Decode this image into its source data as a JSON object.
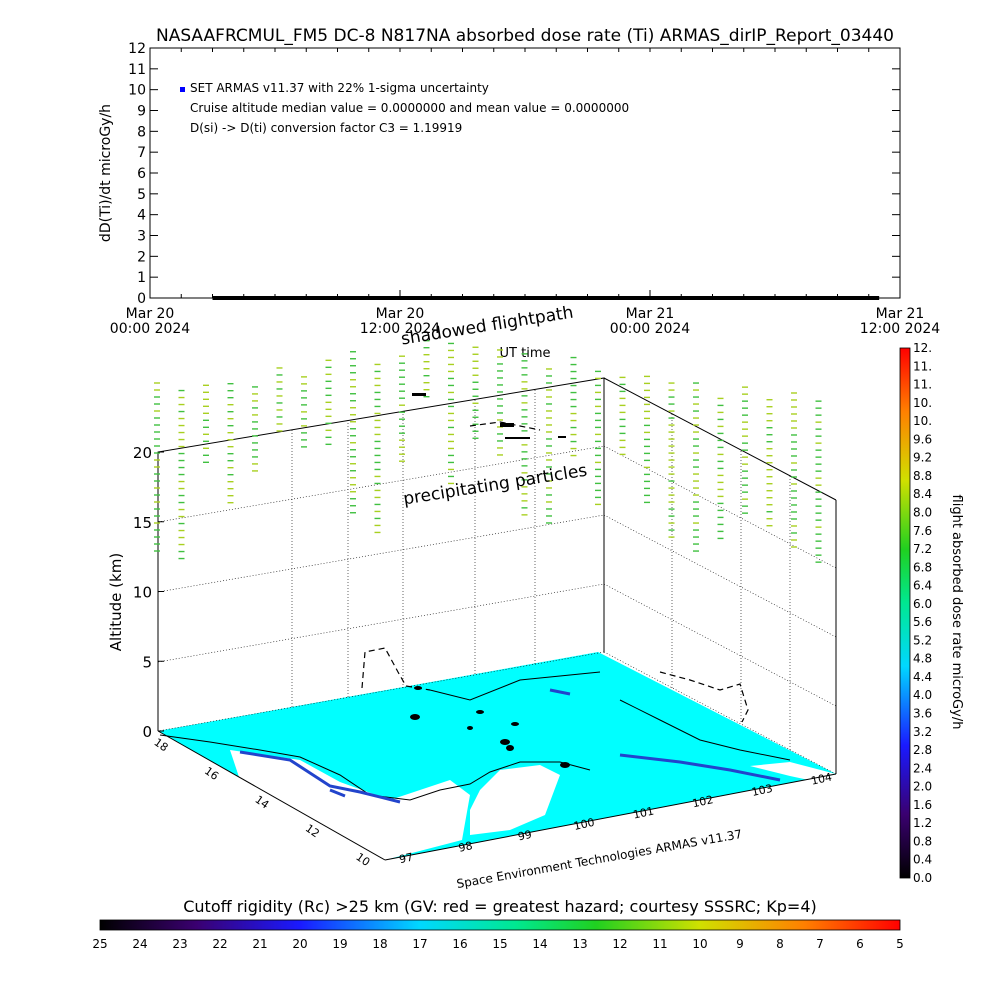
{
  "title": "NASAAFRCMUL_FM5 DC-8   N817NA absorbed dose rate (Ti) ARMAS_dirIP_Report_03440",
  "chart_data": [
    {
      "type": "line",
      "ylabel": "dD(Ti)/dt microGy/h",
      "xlabel": "UT time",
      "ylim": [
        0,
        12
      ],
      "y_ticks": [
        "0",
        "1",
        "2",
        "3",
        "4",
        "5",
        "6",
        "7",
        "8",
        "9",
        "10",
        "11",
        "12"
      ],
      "x_ticks": [
        {
          "date": "Mar 20",
          "time": "00:00 2024"
        },
        {
          "date": "Mar 20",
          "time": "12:00 2024"
        },
        {
          "date": "Mar 21",
          "time": "00:00 2024"
        },
        {
          "date": "Mar 21",
          "time": "12:00 2024"
        }
      ],
      "legend_position": "top-left",
      "annotations": [
        "SET ARMAS v11.37 with 22% 1-sigma uncertainty",
        "Cruise altitude median value = 0.0000000 and mean value = 0.0000000",
        "D(si) -> D(ti) conversion factor C3 = 1.19919"
      ],
      "series": [
        {
          "name": "SET ARMAS v11.37 with 22% 1-sigma uncertainty",
          "x": [
            "2024-03-20 03:00",
            "2024-03-21 11:00"
          ],
          "values": [
            0,
            0
          ],
          "color": "#0000ff"
        }
      ]
    },
    {
      "type": "scatter",
      "ylabel": "Altitude (km)",
      "z_ticks": [
        "0",
        "5",
        "10",
        "15",
        "20"
      ],
      "lat_ticks": [
        "10",
        "12",
        "14",
        "16",
        "18"
      ],
      "lon_ticks": [
        "97",
        "98",
        "99",
        "100",
        "101",
        "102",
        "103",
        "104"
      ],
      "labels": {
        "top": "shadowed flightpath",
        "middle": "precipitating particles",
        "bottom": "Space Environment Technologies ARMAS v11.37"
      },
      "colorbar": {
        "label": "flight absorbed dose rate microGy/h",
        "ticks": [
          "0.0",
          "0.4",
          "0.8",
          "1.2",
          "1.6",
          "2.0",
          "2.4",
          "2.8",
          "3.2",
          "3.6",
          "4.0",
          "4.4",
          "4.8",
          "5.2",
          "5.6",
          "6.0",
          "6.4",
          "6.8",
          "7.2",
          "7.6",
          "8.0",
          "8.4",
          "8.8",
          "9.2",
          "9.6",
          "10.",
          "10.",
          "11.",
          "11.",
          "12."
        ]
      }
    },
    {
      "type": "heatmap",
      "title": "Cutoff rigidity (Rc) >25 km (GV: red = greatest hazard; courtesy SSSRC; Kp=4)",
      "ticks": [
        "25",
        "24",
        "23",
        "22",
        "21",
        "20",
        "19",
        "18",
        "17",
        "16",
        "15",
        "14",
        "13",
        "12",
        "11",
        "10",
        "9",
        "8",
        "7",
        "6",
        "5"
      ]
    }
  ],
  "colors": {
    "cutoff_map": "#00ffff",
    "land_edge": "#2244cc",
    "particles": "#9acd32",
    "trace": "#000000"
  }
}
